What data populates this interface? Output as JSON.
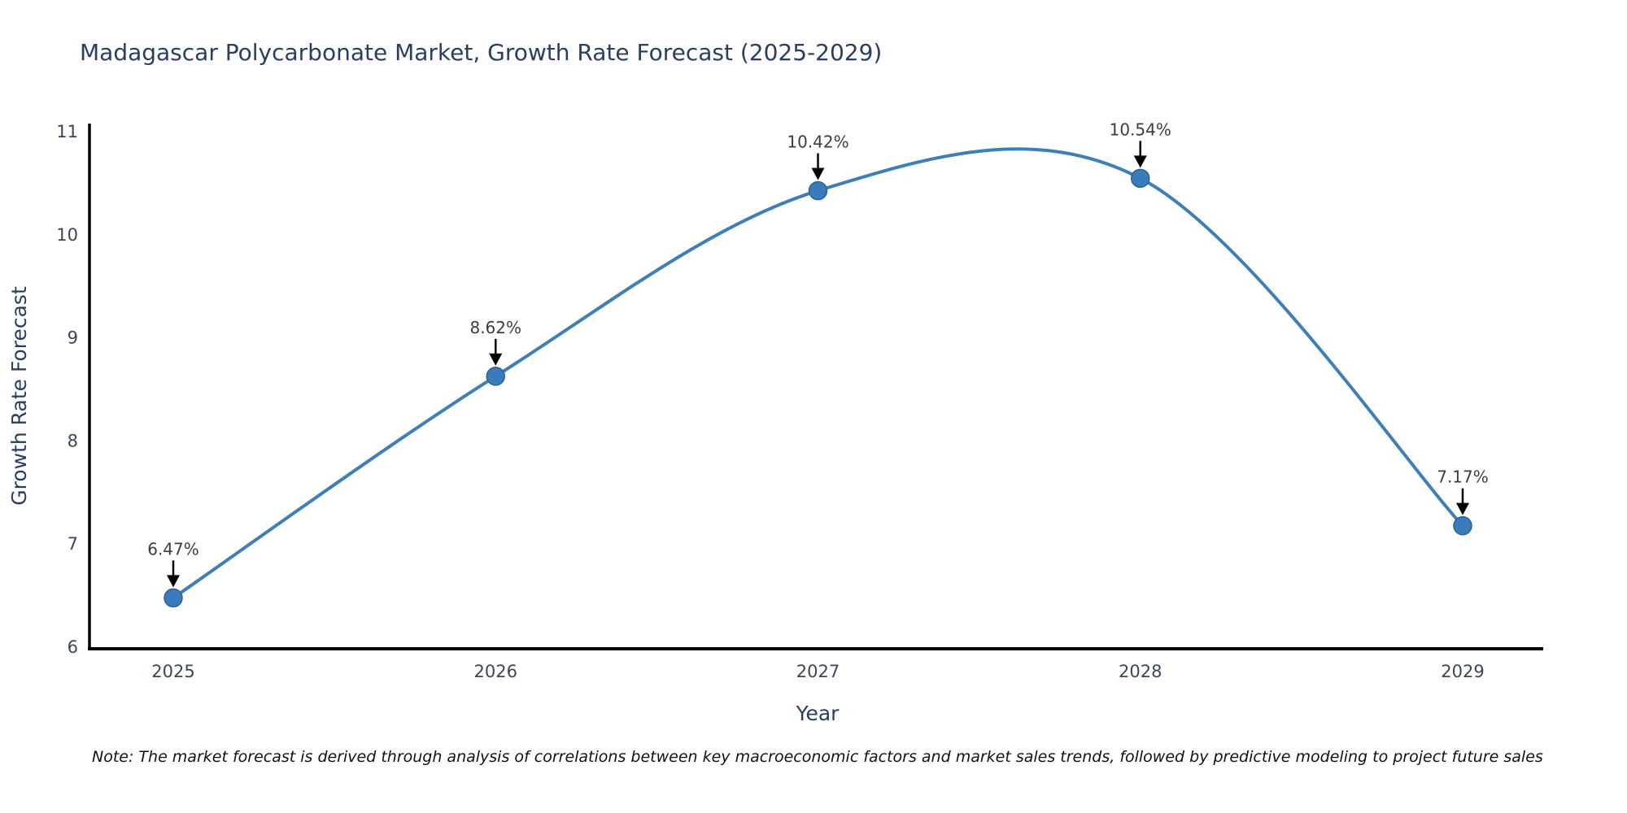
{
  "header": {
    "title": "Madagascar Polycarbonate Market, Growth Rate Forecast (2025-2029)"
  },
  "chart_data": {
    "type": "line",
    "title": "Madagascar Polycarbonate Market, Growth Rate Forecast (2025-2029)",
    "x": [
      "2025",
      "2026",
      "2027",
      "2028",
      "2029"
    ],
    "series": [
      {
        "name": "Growth Rate Forecast",
        "values": [
          6.47,
          8.62,
          10.42,
          10.54,
          7.17
        ]
      }
    ],
    "point_labels": [
      "6.47%",
      "8.62%",
      "10.42%",
      "10.54%",
      "7.17%"
    ],
    "xlabel": "Year",
    "ylabel": "Growth Rate Forecast",
    "ylim": [
      6,
      11
    ],
    "yticks": [
      6,
      7,
      8,
      9,
      10,
      11
    ],
    "line_shape": "spline",
    "grid": false,
    "legend": "none",
    "markers": true,
    "annotations_arrows": true,
    "colors": {
      "line": "#3f7fb8",
      "marker": "#3a7cbb",
      "marker_edge": "#2f6190",
      "axis": "#000000",
      "tick_text": "#3c4657",
      "axis_title_text": "#2a3f5f",
      "annotation_text": "#3d3d3d",
      "annotation_arrow": "#000000",
      "title_text": "#2a3f5f",
      "background": "#ffffff"
    }
  },
  "footer": {
    "note": "Note: The market forecast is derived through analysis of correlations between key macroeconomic factors and market sales trends, followed by predictive modeling to project future sales"
  }
}
